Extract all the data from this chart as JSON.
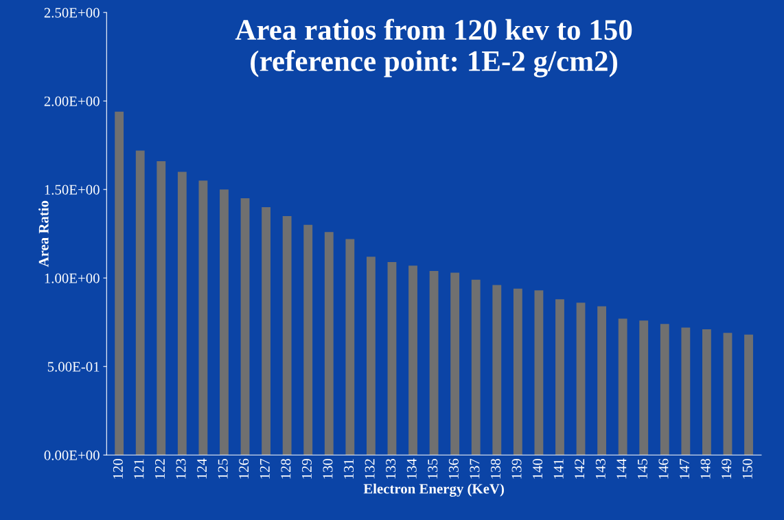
{
  "chart_data": {
    "type": "bar",
    "title": "Area ratios from 120 kev to 150\n(reference point: 1E-2 g/cm2)",
    "xlabel": "Electron Energy (KeV)",
    "ylabel": "Area Ratio",
    "categories": [
      "120",
      "121",
      "122",
      "123",
      "124",
      "125",
      "126",
      "127",
      "128",
      "129",
      "130",
      "131",
      "132",
      "133",
      "134",
      "135",
      "136",
      "137",
      "138",
      "139",
      "140",
      "141",
      "142",
      "143",
      "144",
      "145",
      "146",
      "147",
      "148",
      "149",
      "150"
    ],
    "values": [
      1.94,
      1.72,
      1.66,
      1.6,
      1.55,
      1.5,
      1.45,
      1.4,
      1.35,
      1.3,
      1.26,
      1.22,
      1.12,
      1.09,
      1.07,
      1.04,
      1.03,
      0.99,
      0.96,
      0.94,
      0.93,
      0.88,
      0.86,
      0.84,
      0.77,
      0.76,
      0.74,
      0.72,
      0.71,
      0.69,
      0.68
    ],
    "color": "#707070",
    "ylim": [
      0,
      2.5
    ],
    "yticks": [
      {
        "value": 0,
        "label": "0.00E+00"
      },
      {
        "value": 0.5,
        "label": "5.00E-01"
      },
      {
        "value": 1.0,
        "label": "1.00E+00"
      },
      {
        "value": 1.5,
        "label": "1.50E+00"
      },
      {
        "value": 2.0,
        "label": "2.00E+00"
      },
      {
        "value": 2.5,
        "label": "2.50E+00"
      }
    ],
    "grid": false,
    "legend": false
  }
}
